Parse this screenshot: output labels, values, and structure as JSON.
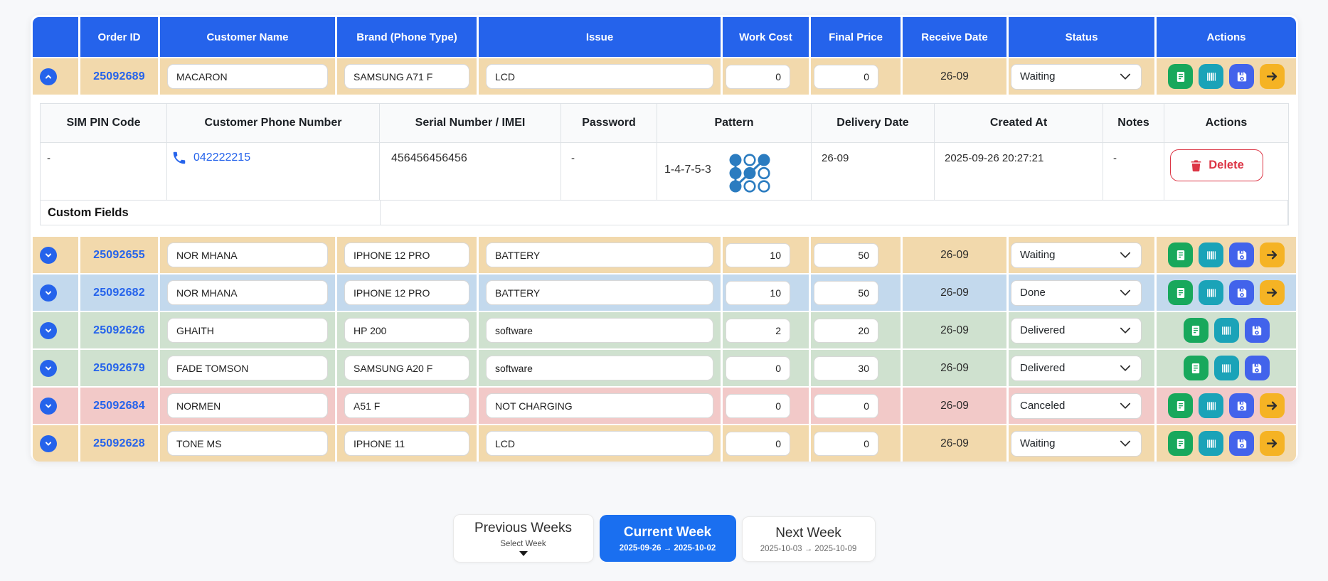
{
  "table": {
    "headers": [
      "",
      "Order ID",
      "Customer Name",
      "Brand (Phone Type)",
      "Issue",
      "Work Cost",
      "Final Price",
      "Receive Date",
      "Status",
      "Actions"
    ],
    "rows": [
      {
        "order_id": "25092689",
        "customer_name": "MACARON",
        "brand": "SAMSUNG A71 F",
        "issue": "LCD",
        "work_cost": "0",
        "final_price": "0",
        "receive_date": "26-09",
        "status": "Waiting",
        "row_color": "waiting",
        "expanded": true,
        "actions": [
          "receipt",
          "barcode",
          "save",
          "forward"
        ]
      },
      {
        "order_id": "25092655",
        "customer_name": "NOR MHANA",
        "brand": "IPHONE 12 PRO",
        "issue": "BATTERY",
        "work_cost": "10",
        "final_price": "50",
        "receive_date": "26-09",
        "status": "Waiting",
        "row_color": "waiting",
        "expanded": false,
        "actions": [
          "receipt",
          "barcode",
          "save",
          "forward"
        ]
      },
      {
        "order_id": "25092682",
        "customer_name": "NOR MHANA",
        "brand": "IPHONE 12 PRO",
        "issue": "BATTERY",
        "work_cost": "10",
        "final_price": "50",
        "receive_date": "26-09",
        "status": "Done",
        "row_color": "done",
        "expanded": false,
        "actions": [
          "receipt",
          "barcode",
          "save",
          "forward"
        ]
      },
      {
        "order_id": "25092626",
        "customer_name": "GHAITH",
        "brand": "HP 200",
        "issue": "software",
        "work_cost": "2",
        "final_price": "20",
        "receive_date": "26-09",
        "status": "Delivered",
        "row_color": "delivered",
        "expanded": false,
        "actions": [
          "receipt",
          "barcode",
          "save"
        ]
      },
      {
        "order_id": "25092679",
        "customer_name": "FADE TOMSON",
        "brand": "SAMSUNG A20 F",
        "issue": "software",
        "work_cost": "0",
        "final_price": "30",
        "receive_date": "26-09",
        "status": "Delivered",
        "row_color": "delivered",
        "expanded": false,
        "actions": [
          "receipt",
          "barcode",
          "save"
        ]
      },
      {
        "order_id": "25092684",
        "customer_name": "NORMEN",
        "brand": "A51 F",
        "issue": "NOT CHARGING",
        "work_cost": "0",
        "final_price": "0",
        "receive_date": "26-09",
        "status": "Canceled",
        "row_color": "canceled",
        "expanded": false,
        "actions": [
          "receipt",
          "barcode",
          "save",
          "forward"
        ]
      },
      {
        "order_id": "25092628",
        "customer_name": "TONE MS",
        "brand": "IPHONE 11",
        "issue": "LCD",
        "work_cost": "0",
        "final_price": "0",
        "receive_date": "26-09",
        "status": "Waiting",
        "row_color": "waiting",
        "expanded": false,
        "actions": [
          "receipt",
          "barcode",
          "save",
          "forward"
        ]
      }
    ],
    "detail": {
      "headers": [
        "SIM PIN Code",
        "Customer Phone Number",
        "Serial Number / IMEI",
        "Password",
        "Pattern",
        "Delivery Date",
        "Created At",
        "Notes",
        "Actions"
      ],
      "sim_pin": "-",
      "phone_number": "042222215",
      "serial_number": "456456456456",
      "password": "-",
      "pattern_text": "1-4-7-5-3",
      "pattern_sequence": [
        1,
        4,
        7,
        5,
        3
      ],
      "delivery_date": "26-09",
      "created_at": "2025-09-26 20:27:21",
      "notes": "-",
      "delete_label": "Delete",
      "custom_fields_label": "Custom Fields"
    }
  },
  "week_nav": {
    "previous": {
      "title": "Previous Weeks",
      "subtitle": "Select Week"
    },
    "current": {
      "title": "Current Week",
      "range": "2025-09-26 → 2025-10-02"
    },
    "next": {
      "title": "Next Week",
      "range": "2025-10-03 → 2025-10-09"
    }
  },
  "colors": {
    "header_blue": "#2563eb",
    "link_blue": "#2563eb",
    "row_waiting": "#f2d9ac",
    "row_done": "#c3d9ed",
    "row_delivered": "#cfe1cf",
    "row_canceled": "#f2c9c8",
    "btn_receipt": "#18a85c",
    "btn_barcode": "#1aa3b8",
    "btn_save": "#4263eb",
    "btn_forward": "#f5b324",
    "pattern_blue": "#2b7cc0",
    "delete_red": "#dc3545",
    "current_blue": "#1a6ff0"
  }
}
